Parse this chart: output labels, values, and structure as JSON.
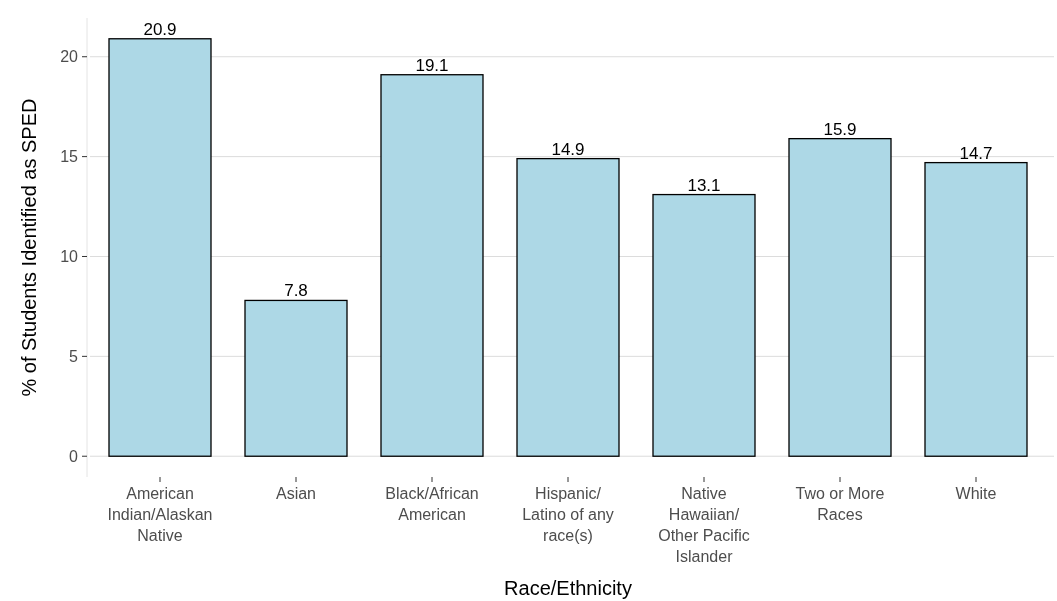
{
  "chart_data": {
    "type": "bar",
    "xlabel": "Race/Ethnicity",
    "ylabel": "% of Students Identified as SPED",
    "categories": [
      "American\nIndian/Alaskan\nNative",
      "Asian",
      "Black/African\nAmerican",
      "Hispanic/\nLatino of any\nrace(s)",
      "Native\nHawaiian/\nOther Pacific\nIslander",
      "Two or More\nRaces",
      "White"
    ],
    "values": [
      20.9,
      7.8,
      19.1,
      14.9,
      13.1,
      15.9,
      14.7
    ],
    "color": "#add8e6",
    "ylim": [
      -1.04,
      21.94
    ],
    "yticks": [
      0,
      5,
      10,
      15,
      20
    ],
    "grid": "y",
    "data_labels": true
  }
}
